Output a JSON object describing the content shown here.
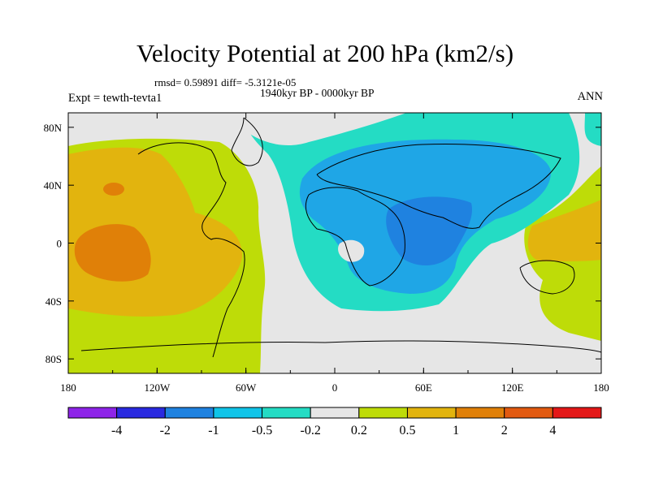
{
  "figure": {
    "title": "Velocity Potential at 200 hPa (km2/s)",
    "stats": "rmsd= 0.59891 diff= -5.3121e-05",
    "period": "1940kyr BP - 0000kyr BP",
    "expt": "Expt = tewth-tevta1",
    "season": "ANN"
  },
  "map": {
    "lon_range": [
      -180,
      180
    ],
    "lat_range": [
      -90,
      90
    ],
    "x_ticks": [
      {
        "value": -180,
        "label": "180"
      },
      {
        "value": -120,
        "label": "120W"
      },
      {
        "value": -60,
        "label": "60W"
      },
      {
        "value": 0,
        "label": "0"
      },
      {
        "value": 60,
        "label": "60E"
      },
      {
        "value": 120,
        "label": "120E"
      },
      {
        "value": 180,
        "label": "180"
      }
    ],
    "y_ticks": [
      {
        "value": 80,
        "label": "80N"
      },
      {
        "value": 40,
        "label": "40N"
      },
      {
        "value": 0,
        "label": "0"
      },
      {
        "value": -40,
        "label": "40S"
      },
      {
        "value": -80,
        "label": "80S"
      }
    ]
  },
  "colorbar": {
    "colors": [
      "#8e24e8",
      "#2a2ae0",
      "#1f82e0",
      "#10c4e8",
      "#24dcc4",
      "#e6e6e6",
      "#bedc08",
      "#e2b40e",
      "#e08008",
      "#e25a10",
      "#e41818"
    ],
    "labels": [
      "-4",
      "-2",
      "-1",
      "-0.5",
      "-0.2",
      "0.2",
      "0.5",
      "1",
      "2",
      "4"
    ]
  }
}
